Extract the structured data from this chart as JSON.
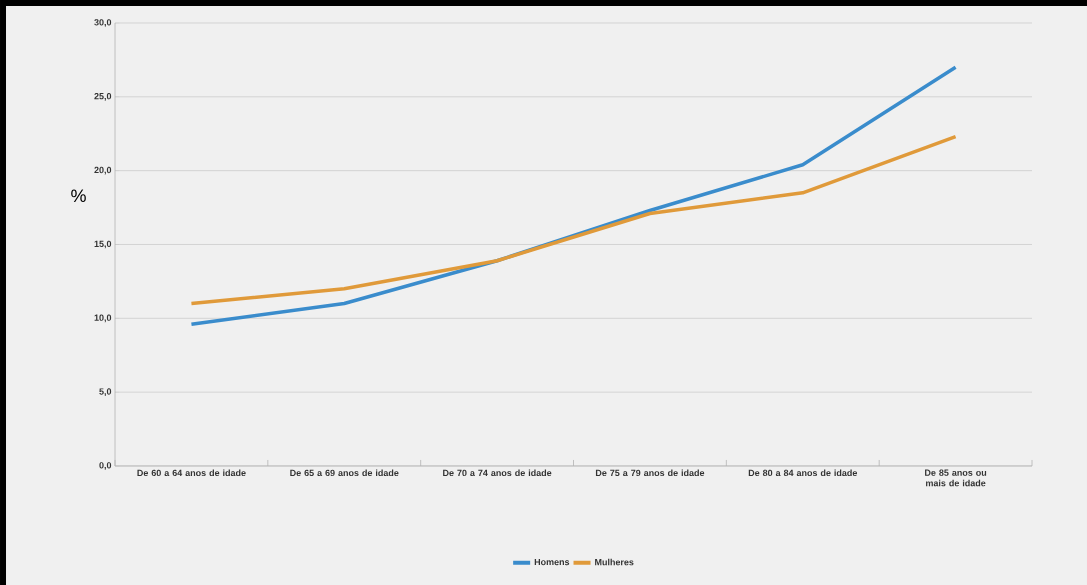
{
  "chart_data": {
    "type": "line",
    "ylabel": "%",
    "categories": [
      "De 60 a 64 anos de idade",
      "De 65 a 69 anos de idade",
      "De 70 a 74 anos de idade",
      "De 75 a 79 anos de idade",
      "De 80 a 84 anos de idade",
      "De 85 anos ou mais de idade"
    ],
    "series": [
      {
        "name": "Homens",
        "color": "#3a8ccc",
        "values": [
          9.6,
          11.0,
          13.9,
          17.3,
          20.4,
          27.0
        ]
      },
      {
        "name": "Mulheres",
        "color": "#e09a3a",
        "values": [
          11.0,
          12.0,
          13.9,
          17.1,
          18.5,
          22.3
        ]
      }
    ],
    "ylim": [
      0,
      30
    ],
    "yticks": [
      {
        "value": 0,
        "label": "0,0"
      },
      {
        "value": 5,
        "label": "5,0"
      },
      {
        "value": 10,
        "label": "10,0"
      },
      {
        "value": 15,
        "label": "15,0"
      },
      {
        "value": 20,
        "label": "20,0"
      },
      {
        "value": 25,
        "label": "25,0"
      },
      {
        "value": 30,
        "label": "30,0"
      }
    ],
    "grid": "y",
    "legend": "bottom",
    "marker": "none",
    "line_style": "solid"
  }
}
